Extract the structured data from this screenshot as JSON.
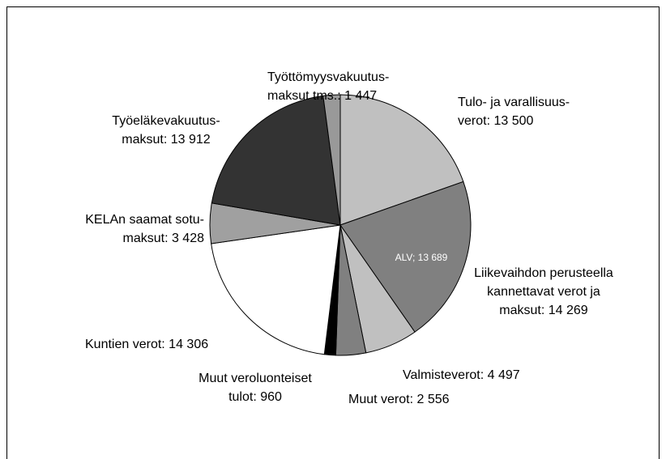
{
  "chart_data": {
    "type": "pie",
    "series": [
      {
        "values": [
          13500,
          14269,
          4497,
          2556,
          960,
          14306,
          3428,
          13912,
          1447
        ],
        "colors": [
          "#c0c0c0",
          "#808080",
          "#c0c0c0",
          "#808080",
          "#000000",
          "#ffffff",
          "#a0a0a0",
          "#333333",
          "#999999"
        ],
        "labels": [
          [
            "Tulo- ja varallisuus-",
            "verot: 13 500"
          ],
          [
            "Liikevaihdon perusteella",
            "kannettavat verot ja",
            "maksut: 14 269"
          ],
          [
            "Valmisteverot: 4 497"
          ],
          [
            "Muut verot: 2 556"
          ],
          [
            "Muut veroluonteiset",
            "tulot: 960"
          ],
          [
            "Kuntien verot: 14 306"
          ],
          [
            "KELAn saamat sotu-",
            "maksut: 3 428"
          ],
          [
            "Työeläkevakuutus-",
            "maksut: 13 912"
          ],
          [
            "Työttömyysvakuutus-",
            "maksut tms.: 1 447"
          ]
        ]
      }
    ],
    "annotations": [
      "ALV; 13 689"
    ]
  }
}
